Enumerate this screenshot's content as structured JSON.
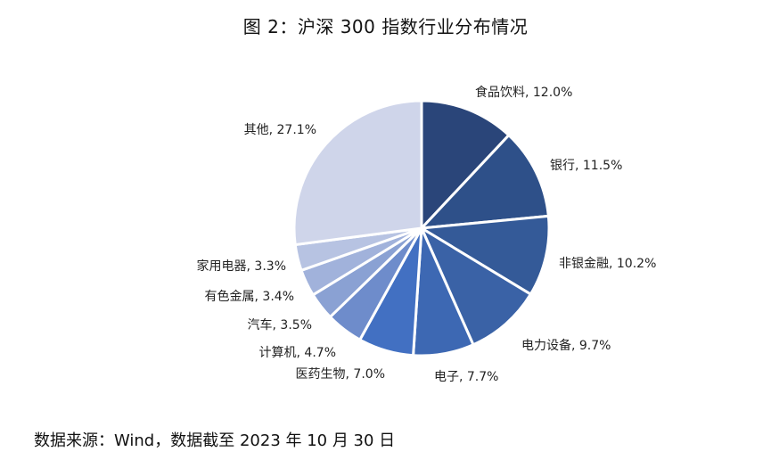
{
  "title": "图 2：沪深 300 指数行业分布情况",
  "source": "数据来源：Wind，数据截至 2023 年 10 月 30 日",
  "chart_data": {
    "type": "pie",
    "title": "图 2：沪深 300 指数行业分布情况",
    "start": "12 o'clock",
    "direction": "clockwise",
    "slices": [
      {
        "name": "食品饮料",
        "value": 12.0,
        "label": "食品饮料, 12.0%",
        "color": "#2a4579"
      },
      {
        "name": "银行",
        "value": 11.5,
        "label": "银行, 11.5%",
        "color": "#2e5089"
      },
      {
        "name": "非银金融",
        "value": 10.2,
        "label": "非银金融, 10.2%",
        "color": "#345a98"
      },
      {
        "name": "电力设备",
        "value": 9.7,
        "label": "电力设备, 9.7%",
        "color": "#3a62a6"
      },
      {
        "name": "电子",
        "value": 7.7,
        "label": "电子, 7.7%",
        "color": "#3d68b3"
      },
      {
        "name": "医药生物",
        "value": 7.0,
        "label": "医药生物, 7.0%",
        "color": "#4270c2"
      },
      {
        "name": "计算机",
        "value": 4.7,
        "label": "计算机, 4.7%",
        "color": "#6e8ccb"
      },
      {
        "name": "汽车",
        "value": 3.5,
        "label": "汽车, 3.5%",
        "color": "#8aa1d3"
      },
      {
        "name": "有色金属",
        "value": 3.4,
        "label": "有色金属, 3.4%",
        "color": "#a1b2db"
      },
      {
        "name": "家用电器",
        "value": 3.3,
        "label": "家用电器, 3.3%",
        "color": "#b7c3e2"
      },
      {
        "name": "其他",
        "value": 27.1,
        "label": "其他, 27.1%",
        "color": "#cfd5ea"
      }
    ]
  }
}
